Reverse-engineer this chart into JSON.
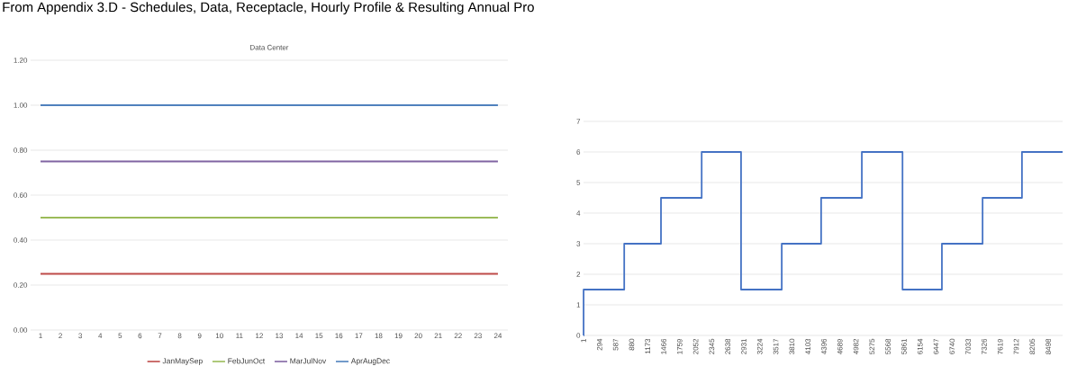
{
  "chart_data": [
    {
      "type": "line",
      "title": "Data Center",
      "annotations": [
        "From Appendix 3.D - Schedules, Data, Receptacle, Hourly Profile & Resulting Annual Pro"
      ],
      "categories": [
        "1",
        "2",
        "3",
        "4",
        "5",
        "6",
        "7",
        "8",
        "9",
        "10",
        "11",
        "12",
        "13",
        "14",
        "15",
        "16",
        "17",
        "18",
        "19",
        "20",
        "21",
        "22",
        "23",
        "24"
      ],
      "series": [
        {
          "name": "JanMaySep",
          "color": "#be4b48",
          "values": [
            0.25,
            0.25,
            0.25,
            0.25,
            0.25,
            0.25,
            0.25,
            0.25,
            0.25,
            0.25,
            0.25,
            0.25,
            0.25,
            0.25,
            0.25,
            0.25,
            0.25,
            0.25,
            0.25,
            0.25,
            0.25,
            0.25,
            0.25,
            0.25
          ]
        },
        {
          "name": "FebJunOct",
          "color": "#9bbb59",
          "values": [
            0.5,
            0.5,
            0.5,
            0.5,
            0.5,
            0.5,
            0.5,
            0.5,
            0.5,
            0.5,
            0.5,
            0.5,
            0.5,
            0.5,
            0.5,
            0.5,
            0.5,
            0.5,
            0.5,
            0.5,
            0.5,
            0.5,
            0.5,
            0.5
          ]
        },
        {
          "name": "MarJulNov",
          "color": "#8064a2",
          "values": [
            0.75,
            0.75,
            0.75,
            0.75,
            0.75,
            0.75,
            0.75,
            0.75,
            0.75,
            0.75,
            0.75,
            0.75,
            0.75,
            0.75,
            0.75,
            0.75,
            0.75,
            0.75,
            0.75,
            0.75,
            0.75,
            0.75,
            0.75,
            0.75
          ]
        },
        {
          "name": "AprAugDec",
          "color": "#4f81bd",
          "values": [
            1,
            1,
            1,
            1,
            1,
            1,
            1,
            1,
            1,
            1,
            1,
            1,
            1,
            1,
            1,
            1,
            1,
            1,
            1,
            1,
            1,
            1,
            1,
            1
          ]
        }
      ],
      "ylim": [
        0,
        1.2
      ],
      "yticks": [
        {
          "value": 0,
          "label": "0.00"
        },
        {
          "value": 0.2,
          "label": "0.20"
        },
        {
          "value": 0.4,
          "label": "0.40"
        },
        {
          "value": 0.6,
          "label": "0.60"
        },
        {
          "value": 0.8,
          "label": "0.80"
        },
        {
          "value": 1,
          "label": "1.00"
        },
        {
          "value": 1.2,
          "label": "1.20"
        }
      ],
      "grid": "y",
      "legend": "bottom"
    },
    {
      "type": "step",
      "x": [
        1,
        2,
        745,
        1417,
        2161,
        2881,
        3625,
        4345,
        5089,
        5833,
        6553,
        7297,
        8017,
        8760
      ],
      "series": [
        {
          "color": "#4472c4",
          "values": [
            0,
            1.5,
            3,
            4.5,
            6,
            1.5,
            3,
            4.5,
            6,
            1.5,
            3,
            4.5,
            6,
            6
          ]
        }
      ],
      "xlim": [
        1,
        8760
      ],
      "xticks": [
        1,
        294,
        587,
        880,
        1173,
        1466,
        1759,
        2052,
        2345,
        2638,
        2931,
        3224,
        3517,
        3810,
        4103,
        4396,
        4689,
        4982,
        5275,
        5568,
        5861,
        6154,
        6447,
        6740,
        7033,
        7326,
        7619,
        7912,
        8205,
        8498
      ],
      "ylim": [
        0,
        7
      ],
      "yticks": [
        0,
        1,
        2,
        3,
        4,
        5,
        6,
        7
      ],
      "grid": "y"
    }
  ]
}
